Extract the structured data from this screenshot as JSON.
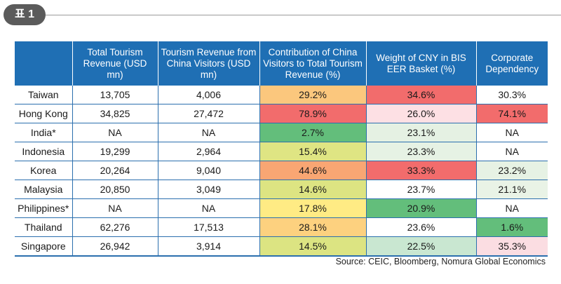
{
  "label": "표 1",
  "headers": [
    "",
    "Total Tourism Revenue (USD mn)",
    "Tourism Revenue from China Visitors (USD mn)",
    "Contribution of China Visitors to Total Tourism Revenue (%)",
    "Weight of CNY in BIS EER Basket (%)",
    "Corporate Dependency"
  ],
  "rows": [
    {
      "country": "Taiwan",
      "total": "13,705",
      "china": "4,006",
      "contribution": "29.2%",
      "weight": "34.6%",
      "corporate": "30.3%"
    },
    {
      "country": "Hong Kong",
      "total": "34,825",
      "china": "27,472",
      "contribution": "78.9%",
      "weight": "26.0%",
      "corporate": "74.1%"
    },
    {
      "country": "India*",
      "total": "NA",
      "china": "NA",
      "contribution": "2.7%",
      "weight": "23.1%",
      "corporate": "NA"
    },
    {
      "country": "Indonesia",
      "total": "19,299",
      "china": "2,964",
      "contribution": "15.4%",
      "weight": "23.3%",
      "corporate": "NA"
    },
    {
      "country": "Korea",
      "total": "20,264",
      "china": "9,040",
      "contribution": "44.6%",
      "weight": "33.3%",
      "corporate": "23.2%"
    },
    {
      "country": "Malaysia",
      "total": "20,850",
      "china": "3,049",
      "contribution": "14.6%",
      "weight": "23.7%",
      "corporate": "21.1%"
    },
    {
      "country": "Philippines*",
      "total": "NA",
      "china": "NA",
      "contribution": "17.8%",
      "weight": "20.9%",
      "corporate": "NA"
    },
    {
      "country": "Thailand",
      "total": "62,276",
      "china": "17,513",
      "contribution": "28.1%",
      "weight": "23.6%",
      "corporate": "1.6%"
    },
    {
      "country": "Singapore",
      "total": "26,942",
      "china": "3,914",
      "contribution": "14.5%",
      "weight": "22.5%",
      "corporate": "35.3%"
    }
  ],
  "cell_colors": {
    "contribution": [
      "#fbc77d",
      "#f26c6c",
      "#63be7b",
      "#dfe583",
      "#f9a673",
      "#dde482",
      "#ffeb84",
      "#fdd17f",
      "#dce482"
    ],
    "weight": [
      "#f26c6c",
      "#fde0e4",
      "#e5f1e3",
      "#e6f2e4",
      "#f26c6c",
      "#ffffff",
      "#63be7b",
      "#ffffff",
      "#c9e7d1"
    ],
    "corporate": [
      "#ffffff",
      "#f26c6c",
      "#ffffff",
      "#ffffff",
      "#e6f2e4",
      "#e9f3e6",
      "#ffffff",
      "#63be7b",
      "#fbdde2"
    ]
  },
  "colors": {
    "header_bg": "#1f6fb4",
    "border": "#2b6fae"
  },
  "source": "Source: CEIC, Bloomberg, Nomura Global Economics"
}
